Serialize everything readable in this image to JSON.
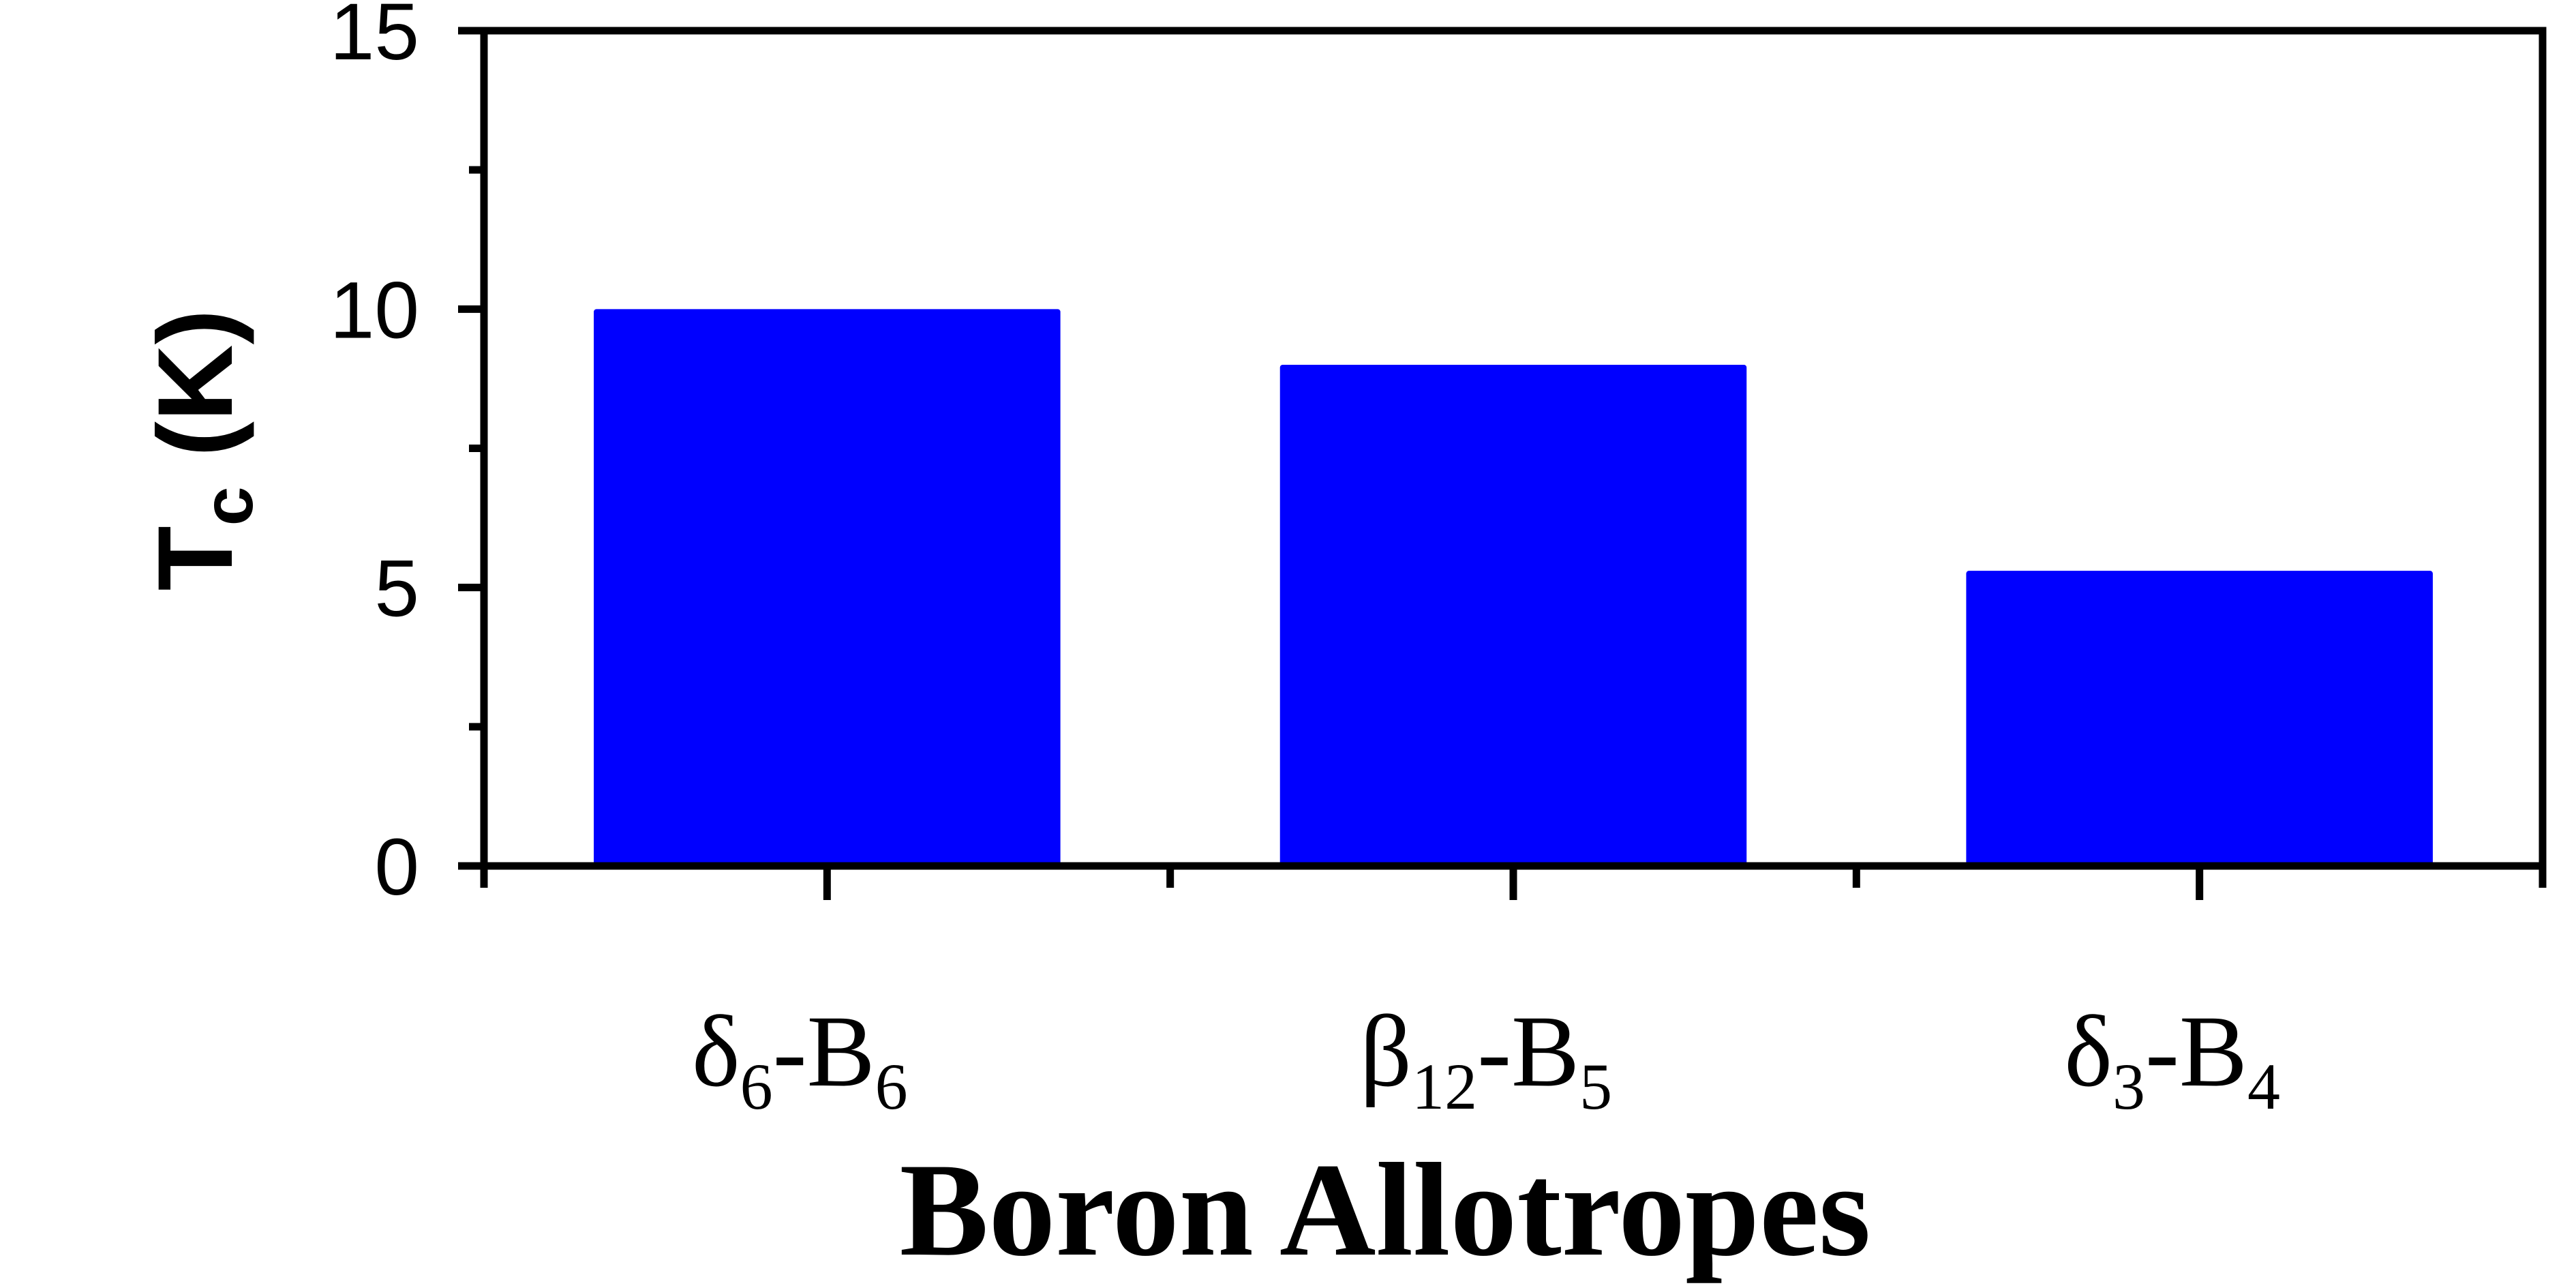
{
  "chart_data": {
    "type": "bar",
    "categories": [
      {
        "base": "δ",
        "sub1": "6",
        "mid": "-B",
        "sub2": "6"
      },
      {
        "base": "β",
        "sub1": "12",
        "mid": "-B",
        "sub2": "5"
      },
      {
        "base": "δ",
        "sub1": "3",
        "mid": "-B",
        "sub2": "4"
      }
    ],
    "values": [
      10.0,
      9.0,
      5.3
    ],
    "xlabel": "Boron Allotropes",
    "ylabel": {
      "main": "T",
      "sub": "c",
      "rest": " (K)"
    },
    "ylim": [
      0,
      15
    ],
    "yticks": [
      "0",
      "5",
      "10",
      "15"
    ],
    "bar_color": "#0000ff",
    "axis_color": "#000000",
    "grid": false,
    "legend": "none"
  }
}
